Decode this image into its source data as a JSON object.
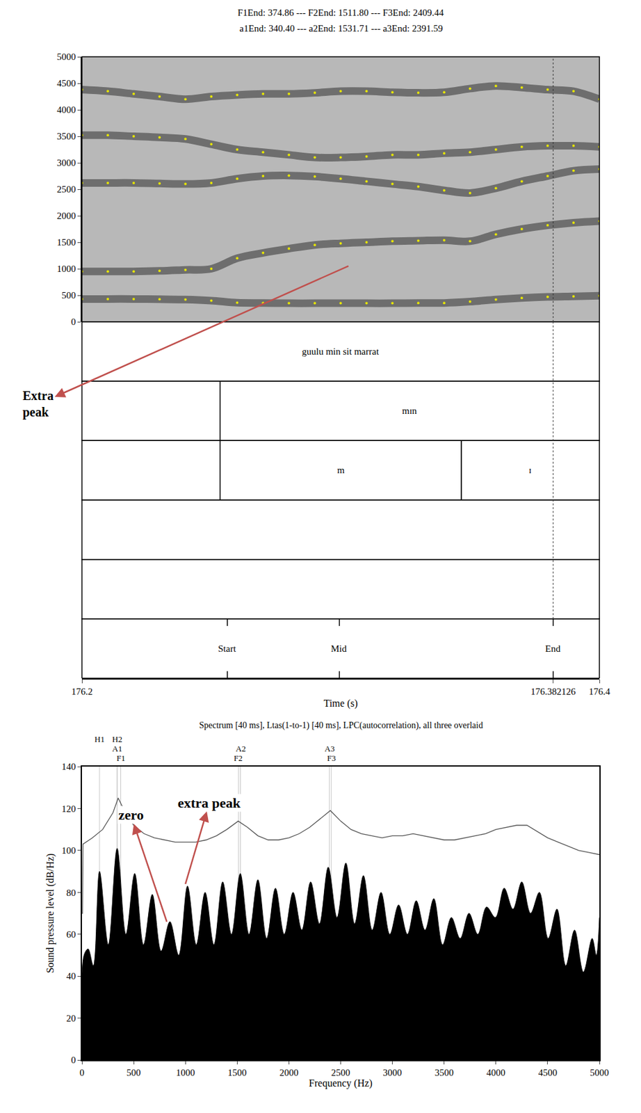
{
  "chart_data": [
    {
      "type": "scatter",
      "header": [
        "F1End: 374.86 --- F2End: 1511.80 --- F3End: 2409.44",
        "a1End: 340.40 --- a2End: 1531.71 --- a3End: 2391.59"
      ],
      "xlabel": "Time (s)",
      "xlim": [
        176.2,
        176.4
      ],
      "xticks": [
        176.2,
        176.382126,
        176.4
      ],
      "ylim": [
        0,
        5000
      ],
      "yticks": [
        0,
        500,
        1000,
        1500,
        2000,
        2500,
        3000,
        3500,
        4000,
        4500,
        5000
      ],
      "color": "#e6e600",
      "marker": "circle",
      "x": [
        176.2,
        176.21,
        176.22,
        176.23,
        176.24,
        176.25,
        176.26,
        176.27,
        176.28,
        176.29,
        176.3,
        176.31,
        176.32,
        176.33,
        176.34,
        176.35,
        176.36,
        176.37,
        176.38,
        176.39,
        176.4
      ],
      "series": [
        {
          "values": [
            430,
            430,
            430,
            425,
            420,
            400,
            360,
            355,
            350,
            350,
            350,
            350,
            350,
            355,
            355,
            380,
            420,
            450,
            470,
            480,
            490
          ]
        },
        {
          "values": [
            950,
            950,
            950,
            960,
            980,
            1000,
            1200,
            1300,
            1380,
            1450,
            1480,
            1500,
            1520,
            1530,
            1540,
            1520,
            1650,
            1750,
            1820,
            1870,
            1900
          ]
        },
        {
          "values": [
            2620,
            2620,
            2620,
            2610,
            2600,
            2620,
            2700,
            2750,
            2760,
            2740,
            2700,
            2650,
            2600,
            2550,
            2480,
            2430,
            2520,
            2650,
            2750,
            2850,
            2880
          ]
        },
        {
          "values": [
            3520,
            3520,
            3500,
            3480,
            3450,
            3350,
            3250,
            3200,
            3150,
            3100,
            3100,
            3120,
            3150,
            3150,
            3180,
            3200,
            3250,
            3300,
            3320,
            3320,
            3300
          ]
        },
        {
          "values": [
            4380,
            4350,
            4300,
            4250,
            4200,
            4250,
            4280,
            4300,
            4300,
            4320,
            4350,
            4350,
            4330,
            4320,
            4330,
            4400,
            4450,
            4420,
            4380,
            4350,
            4200
          ]
        }
      ],
      "cursor": 176.382126,
      "tiers": [
        {
          "intervals": [
            {
              "text": "guulu min sit marrat",
              "start": 176.2,
              "end": 176.4
            }
          ]
        },
        {
          "intervals": [
            {
              "text": "mɪn",
              "start": 176.2534,
              "end": 176.4
            }
          ]
        },
        {
          "intervals": [
            {
              "text": "m",
              "start": 176.2534,
              "end": 176.3466
            },
            {
              "text": "ɪ",
              "start": 176.3466,
              "end": 176.4
            }
          ]
        },
        {
          "intervals": []
        },
        {
          "intervals": []
        },
        {
          "points": [
            {
              "text": "Start",
              "t": 176.2562
            },
            {
              "text": "Mid",
              "t": 176.2995
            },
            {
              "text": "End",
              "t": 176.382126
            }
          ]
        }
      ],
      "annotations": [
        {
          "text": "Extra peak",
          "x": 176.303,
          "y": 1053
        }
      ]
    },
    {
      "type": "line",
      "title": "Spectrum [40 ms], Ltas(1-to-1) [40 ms], LPC(autocorrelation), all three overlaid",
      "xlabel": "Frequency (Hz)",
      "ylabel": "Sound pressure level (dB/Hz)",
      "xlim": [
        0,
        5000
      ],
      "xticks": [
        0,
        500,
        1000,
        1500,
        2000,
        2500,
        3000,
        3500,
        4000,
        4500,
        5000
      ],
      "ylim": [
        0,
        140
      ],
      "yticks": [
        0,
        20,
        40,
        60,
        80,
        100,
        120,
        140
      ],
      "series": [
        {
          "type": "area",
          "color": "#000000",
          "x": [
            0,
            20,
            60,
            110,
            170,
            255,
            340,
            425,
            510,
            595,
            680,
            765,
            850,
            935,
            1020,
            1105,
            1190,
            1275,
            1360,
            1445,
            1530,
            1615,
            1700,
            1785,
            1870,
            1955,
            2040,
            2125,
            2210,
            2295,
            2380,
            2465,
            2550,
            2635,
            2720,
            2805,
            2890,
            2975,
            3060,
            3145,
            3230,
            3315,
            3400,
            3485,
            3570,
            3655,
            3740,
            3825,
            3910,
            3995,
            4080,
            4165,
            4250,
            4335,
            4420,
            4505,
            4590,
            4675,
            4760,
            4845,
            4930,
            4970,
            5000
          ],
          "values": [
            10,
            50,
            53,
            45,
            90,
            55,
            101,
            60,
            89,
            55,
            79,
            52,
            66,
            50,
            83,
            55,
            80,
            55,
            85,
            60,
            89,
            60,
            86,
            58,
            82,
            60,
            80,
            62,
            85,
            65,
            92,
            68,
            94,
            65,
            88,
            62,
            80,
            60,
            74,
            60,
            76,
            62,
            77,
            55,
            68,
            58,
            70,
            60,
            73,
            68,
            82,
            72,
            85,
            70,
            80,
            58,
            72,
            45,
            62,
            42,
            58,
            50,
            68
          ]
        },
        {
          "type": "line",
          "color": "#555555",
          "x": [
            0,
            5,
            10,
            100,
            200,
            300,
            350,
            400,
            500,
            600,
            700,
            800,
            900,
            1000,
            1100,
            1200,
            1300,
            1400,
            1510,
            1600,
            1700,
            1800,
            1900,
            2000,
            2100,
            2200,
            2300,
            2400,
            2500,
            2600,
            2700,
            2800,
            2900,
            3000,
            3100,
            3200,
            3300,
            3400,
            3500,
            3600,
            3700,
            3800,
            3900,
            4000,
            4100,
            4200,
            4300,
            4400,
            4500,
            4600,
            4700,
            4800,
            4900,
            5000
          ],
          "values": [
            70,
            70,
            103,
            106,
            110,
            118,
            125,
            120,
            112,
            108,
            106,
            105,
            104,
            104,
            104,
            105,
            107,
            110,
            114,
            111,
            107,
            105,
            105,
            106,
            108,
            111,
            115,
            119,
            114,
            110,
            108,
            107,
            106,
            107,
            107,
            108,
            107,
            106,
            105,
            105,
            106,
            107,
            108,
            110,
            111,
            112,
            112,
            109,
            106,
            104,
            102,
            100,
            99,
            98
          ]
        }
      ],
      "markers": [
        {
          "label": "H1",
          "x": 170
        },
        {
          "label": "H2",
          "x": 340
        },
        {
          "label": "A1",
          "x": 340.4
        },
        {
          "label": "F1",
          "x": 374.86
        },
        {
          "label": "F2",
          "x": 1511.8
        },
        {
          "label": "A2",
          "x": 1531.71
        },
        {
          "label": "F3",
          "x": 2409.44
        },
        {
          "label": "A3",
          "x": 2391.59
        }
      ],
      "annotations": [
        {
          "text": "zero",
          "x": 820,
          "y": 66
        },
        {
          "text": "extra peak",
          "x": 1000,
          "y": 84
        }
      ]
    }
  ]
}
